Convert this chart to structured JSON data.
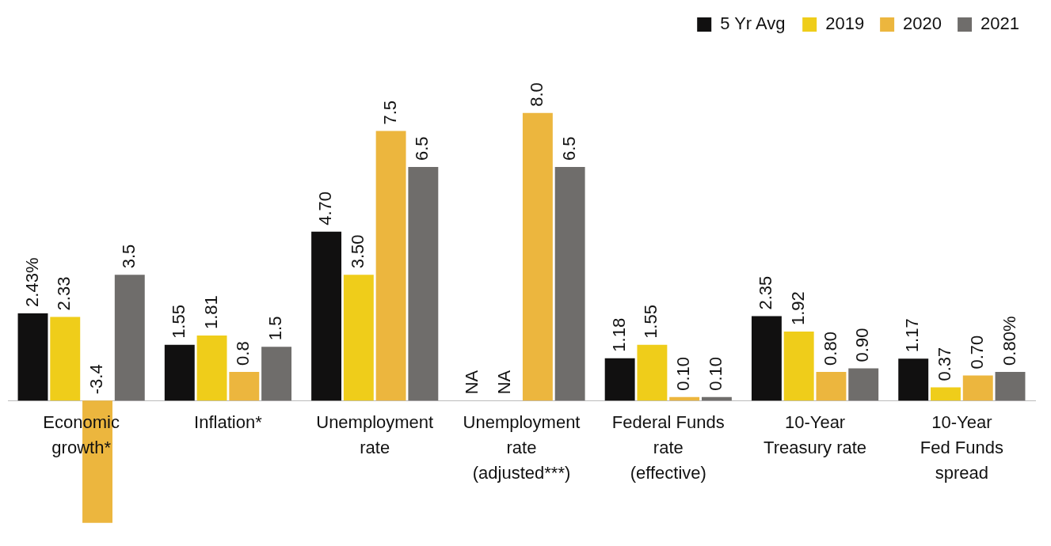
{
  "chart_data": {
    "type": "bar",
    "categories": [
      "Economic\ngrowth*",
      "Inflation*",
      "Unemployment\nrate",
      "Unemployment\nrate\n(adjusted***)",
      "Federal Funds\nrate\n(effective)",
      "10-Year\nTreasury rate",
      "10-Year\nFed Funds\nspread"
    ],
    "series": [
      {
        "name": "5 Yr Avg",
        "color": "#111010",
        "values": [
          2.43,
          1.55,
          4.7,
          null,
          1.18,
          2.35,
          1.17
        ],
        "value_labels": [
          "2.43%",
          "1.55",
          "4.70",
          "NA",
          "1.18",
          "2.35",
          "1.17"
        ]
      },
      {
        "name": "2019",
        "color": "#efcd1a",
        "values": [
          2.33,
          1.81,
          3.5,
          null,
          1.55,
          1.92,
          0.37
        ],
        "value_labels": [
          "2.33",
          "1.81",
          "3.50",
          "NA",
          "1.55",
          "1.92",
          "0.37"
        ]
      },
      {
        "name": "2020",
        "color": "#ecb63e",
        "values": [
          -3.4,
          0.8,
          7.5,
          8.0,
          0.1,
          0.8,
          0.7
        ],
        "value_labels": [
          "-3.4",
          "0.8",
          "7.5",
          "8.0",
          "0.10",
          "0.80",
          "0.70"
        ]
      },
      {
        "name": "2021",
        "color": "#6f6d6b",
        "values": [
          3.5,
          1.5,
          6.5,
          6.5,
          0.1,
          0.9,
          0.8
        ],
        "value_labels": [
          "3.5",
          "1.5",
          "6.5",
          "6.5",
          "0.10",
          "0.90",
          "0.80%"
        ]
      }
    ],
    "tick_labels": "x",
    "grid": false,
    "legend": "top right"
  }
}
